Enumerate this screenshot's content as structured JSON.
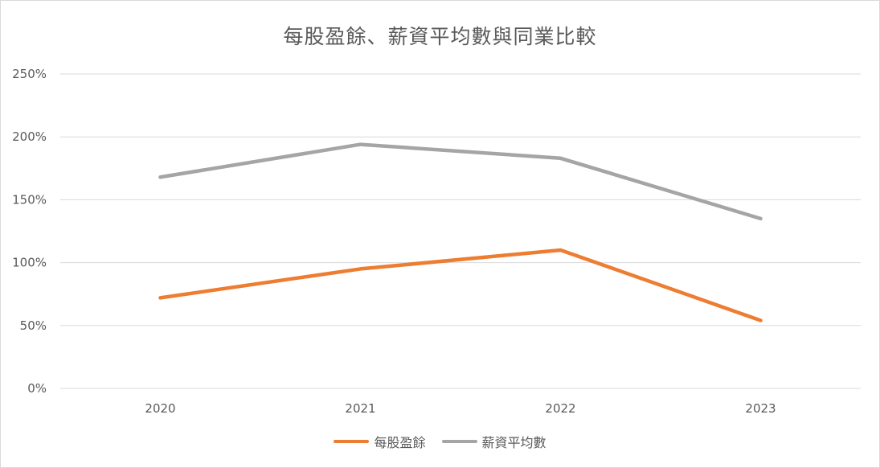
{
  "chart_data": {
    "type": "line",
    "title": "每股盈餘、薪資平均數與同業比較",
    "categories": [
      "2020",
      "2021",
      "2022",
      "2023"
    ],
    "series": [
      {
        "name": "每股盈餘",
        "values": [
          72,
          95,
          110,
          54
        ],
        "color": "#ed7d31"
      },
      {
        "name": "薪資平均數",
        "values": [
          168,
          194,
          183,
          135
        ],
        "color": "#a5a5a5"
      }
    ],
    "y_ticks": [
      "0%",
      "50%",
      "100%",
      "150%",
      "200%",
      "250%"
    ],
    "ylim": [
      0,
      250
    ],
    "grid": true,
    "legend_position": "bottom"
  }
}
